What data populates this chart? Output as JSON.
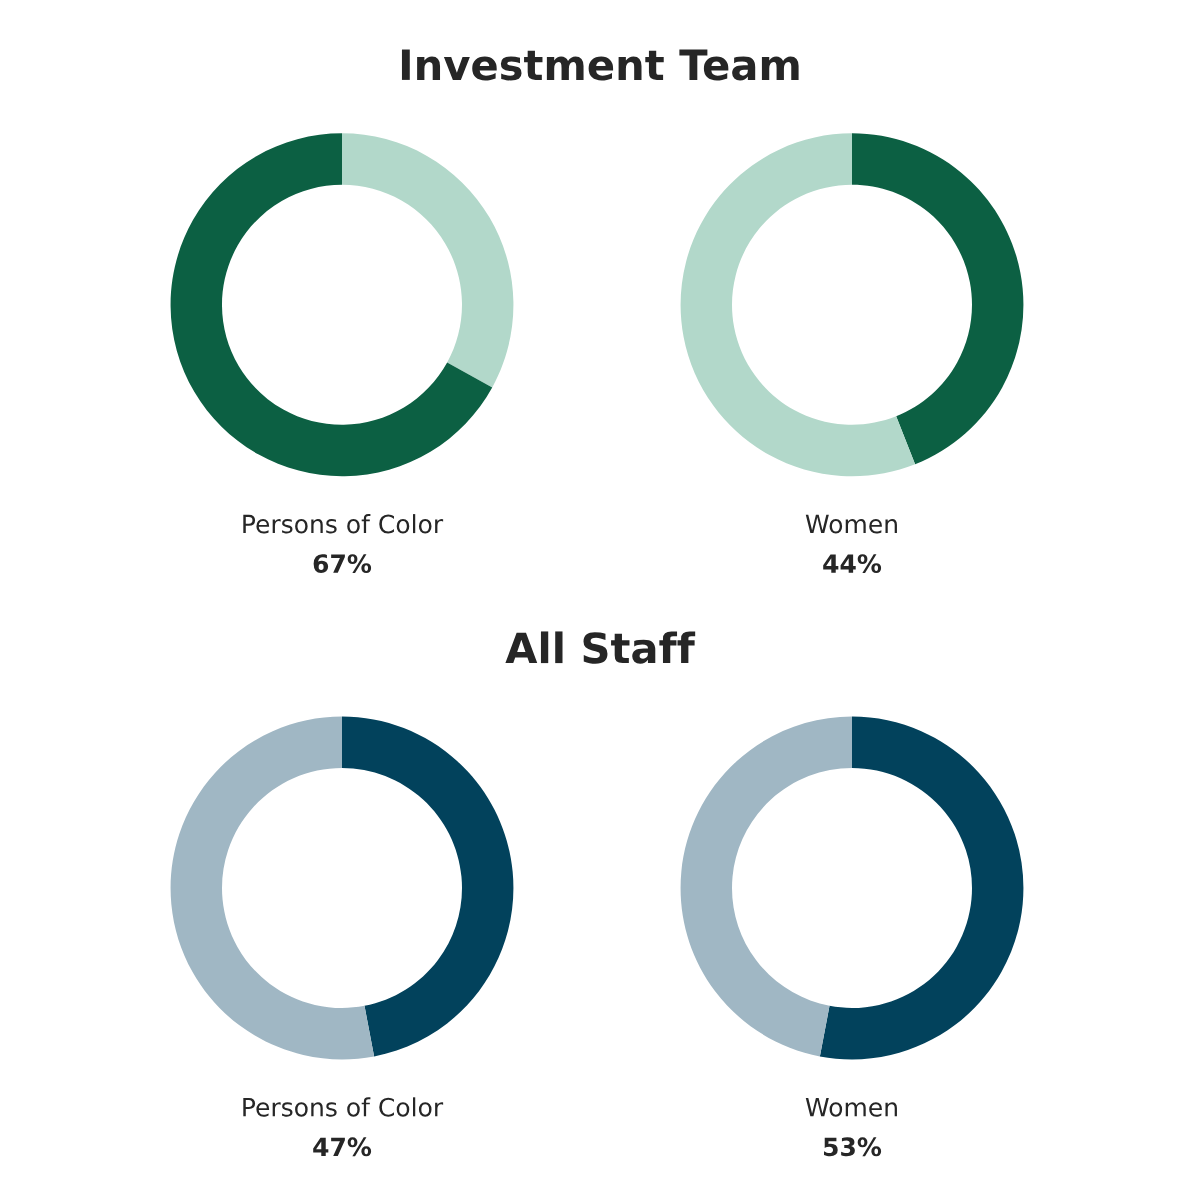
{
  "chart_data": [
    {
      "type": "donut",
      "title": "Investment Team",
      "xlabel": "Persons of Color",
      "annotations": [
        "67%"
      ],
      "categories": [
        null,
        null
      ],
      "values": [
        33,
        67
      ],
      "colors": [
        "#b2d8ca",
        "#0c6043"
      ]
    },
    {
      "type": "donut",
      "xlabel": "Women",
      "annotations": [
        "44%"
      ],
      "categories": [
        null,
        null
      ],
      "values": [
        44,
        56
      ],
      "colors": [
        "#0c6043",
        "#b2d8ca"
      ]
    },
    {
      "type": "donut",
      "title": "All Staff",
      "xlabel": "Persons of Color",
      "annotations": [
        "47%"
      ],
      "categories": [
        null,
        null
      ],
      "values": [
        47,
        53
      ],
      "colors": [
        "#02425c",
        "#a0b7c4"
      ]
    },
    {
      "type": "donut",
      "xlabel": "Women",
      "annotations": [
        "53%"
      ],
      "categories": [
        null,
        null
      ],
      "values": [
        53,
        47
      ],
      "colors": [
        "#02425c",
        "#a0b7c4"
      ]
    }
  ]
}
